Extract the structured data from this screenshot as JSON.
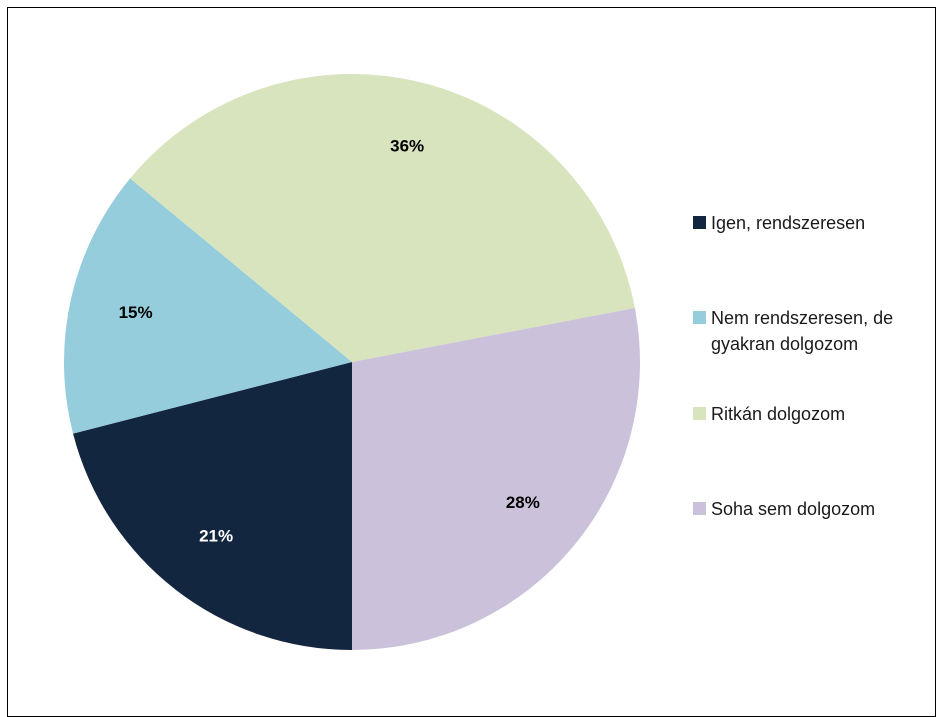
{
  "chart_data": {
    "type": "pie",
    "title": "",
    "slices": [
      {
        "name": "Igen, rendszeresen",
        "value": 21,
        "label": "21%",
        "color": "#13263f",
        "label_color": "#ffffff"
      },
      {
        "name": "Nem rendszeresen, de gyakran dolgozom",
        "value": 15,
        "label": "15%",
        "color": "#96cddc",
        "label_color": "#000000"
      },
      {
        "name": "Ritkán dolgozom",
        "value": 36,
        "label": "36%",
        "color": "#d7e4bd",
        "label_color": "#000000"
      },
      {
        "name": "Soha sem dolgozom",
        "value": 28,
        "label": "28%",
        "color": "#ccc1da",
        "label_color": "#000000"
      }
    ],
    "legend_position": "right"
  }
}
